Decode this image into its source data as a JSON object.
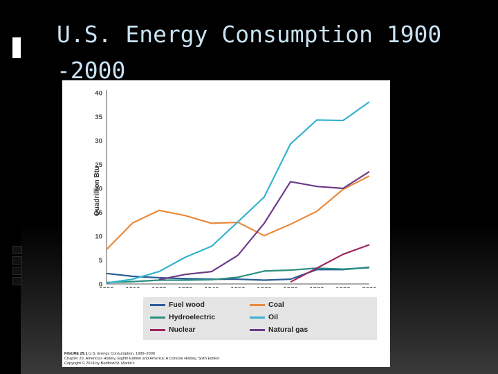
{
  "slide": {
    "title": "U.S. Energy Consumption 1900 -2000"
  },
  "caption": {
    "figure_label": "FIGURE 29.1",
    "figure_title": "U.S. Energy Consumption, 1900–2000",
    "line2": "Chapter 29, America’s History, Eighth Edition and America: A Concise History, Sixth Edition",
    "line3": "Copyright © 2014 by Bedford/St. Martin’s"
  },
  "chart_data": {
    "type": "line",
    "ylabel": "Quadrillion Btu",
    "xlabel": "",
    "x": [
      1900,
      1910,
      1920,
      1930,
      1940,
      1950,
      1960,
      1970,
      1980,
      1990,
      2000
    ],
    "ylim": [
      0,
      40
    ],
    "yticks": [
      0,
      5,
      10,
      15,
      20,
      25,
      30,
      35,
      40
    ],
    "legend_position": "bottom",
    "grid": false,
    "series": [
      {
        "name": "Fuel wood",
        "color": "#2a5d96",
        "points": [
          [
            1900,
            2.2
          ],
          [
            1910,
            1.6
          ],
          [
            1920,
            1.3
          ],
          [
            1930,
            1.1
          ],
          [
            1940,
            1.0
          ],
          [
            1950,
            1.0
          ],
          [
            1960,
            0.8
          ],
          [
            1970,
            1.0
          ],
          [
            1980,
            3.0
          ],
          [
            1990,
            3.0
          ],
          [
            2000,
            3.5
          ]
        ]
      },
      {
        "name": "Coal",
        "color": "#e88a3e",
        "points": [
          [
            1900,
            7.2
          ],
          [
            1910,
            12.8
          ],
          [
            1920,
            15.4
          ],
          [
            1930,
            14.3
          ],
          [
            1940,
            12.7
          ],
          [
            1950,
            12.9
          ],
          [
            1960,
            10.1
          ],
          [
            1970,
            12.5
          ],
          [
            1980,
            15.2
          ],
          [
            1990,
            19.8
          ],
          [
            2000,
            22.6
          ]
        ]
      },
      {
        "name": "Hydroelectric",
        "color": "#2a8f80",
        "points": [
          [
            1900,
            0.3
          ],
          [
            1910,
            0.5
          ],
          [
            1920,
            0.8
          ],
          [
            1930,
            0.8
          ],
          [
            1940,
            0.9
          ],
          [
            1950,
            1.4
          ],
          [
            1960,
            2.7
          ],
          [
            1970,
            2.9
          ],
          [
            1980,
            3.3
          ],
          [
            1990,
            3.1
          ],
          [
            2000,
            3.4
          ]
        ]
      },
      {
        "name": "Oil",
        "color": "#35b3cf",
        "points": [
          [
            1900,
            0.2
          ],
          [
            1910,
            1.0
          ],
          [
            1920,
            2.6
          ],
          [
            1930,
            5.6
          ],
          [
            1940,
            7.9
          ],
          [
            1950,
            13.0
          ],
          [
            1960,
            18.2
          ],
          [
            1970,
            29.3
          ],
          [
            1980,
            34.3
          ],
          [
            1990,
            34.2
          ],
          [
            2000,
            38.1
          ]
        ]
      },
      {
        "name": "Nuclear",
        "color": "#a0245f",
        "points": [
          [
            1970,
            0.4
          ],
          [
            1980,
            3.3
          ],
          [
            1990,
            6.2
          ],
          [
            2000,
            8.2
          ]
        ]
      },
      {
        "name": "Natural gas",
        "color": "#6d3a87",
        "points": [
          [
            1920,
            0.9
          ],
          [
            1930,
            2.0
          ],
          [
            1940,
            2.6
          ],
          [
            1950,
            6.0
          ],
          [
            1960,
            12.7
          ],
          [
            1970,
            21.4
          ],
          [
            1980,
            20.4
          ],
          [
            1990,
            20.0
          ],
          [
            2000,
            23.5
          ]
        ]
      }
    ]
  }
}
